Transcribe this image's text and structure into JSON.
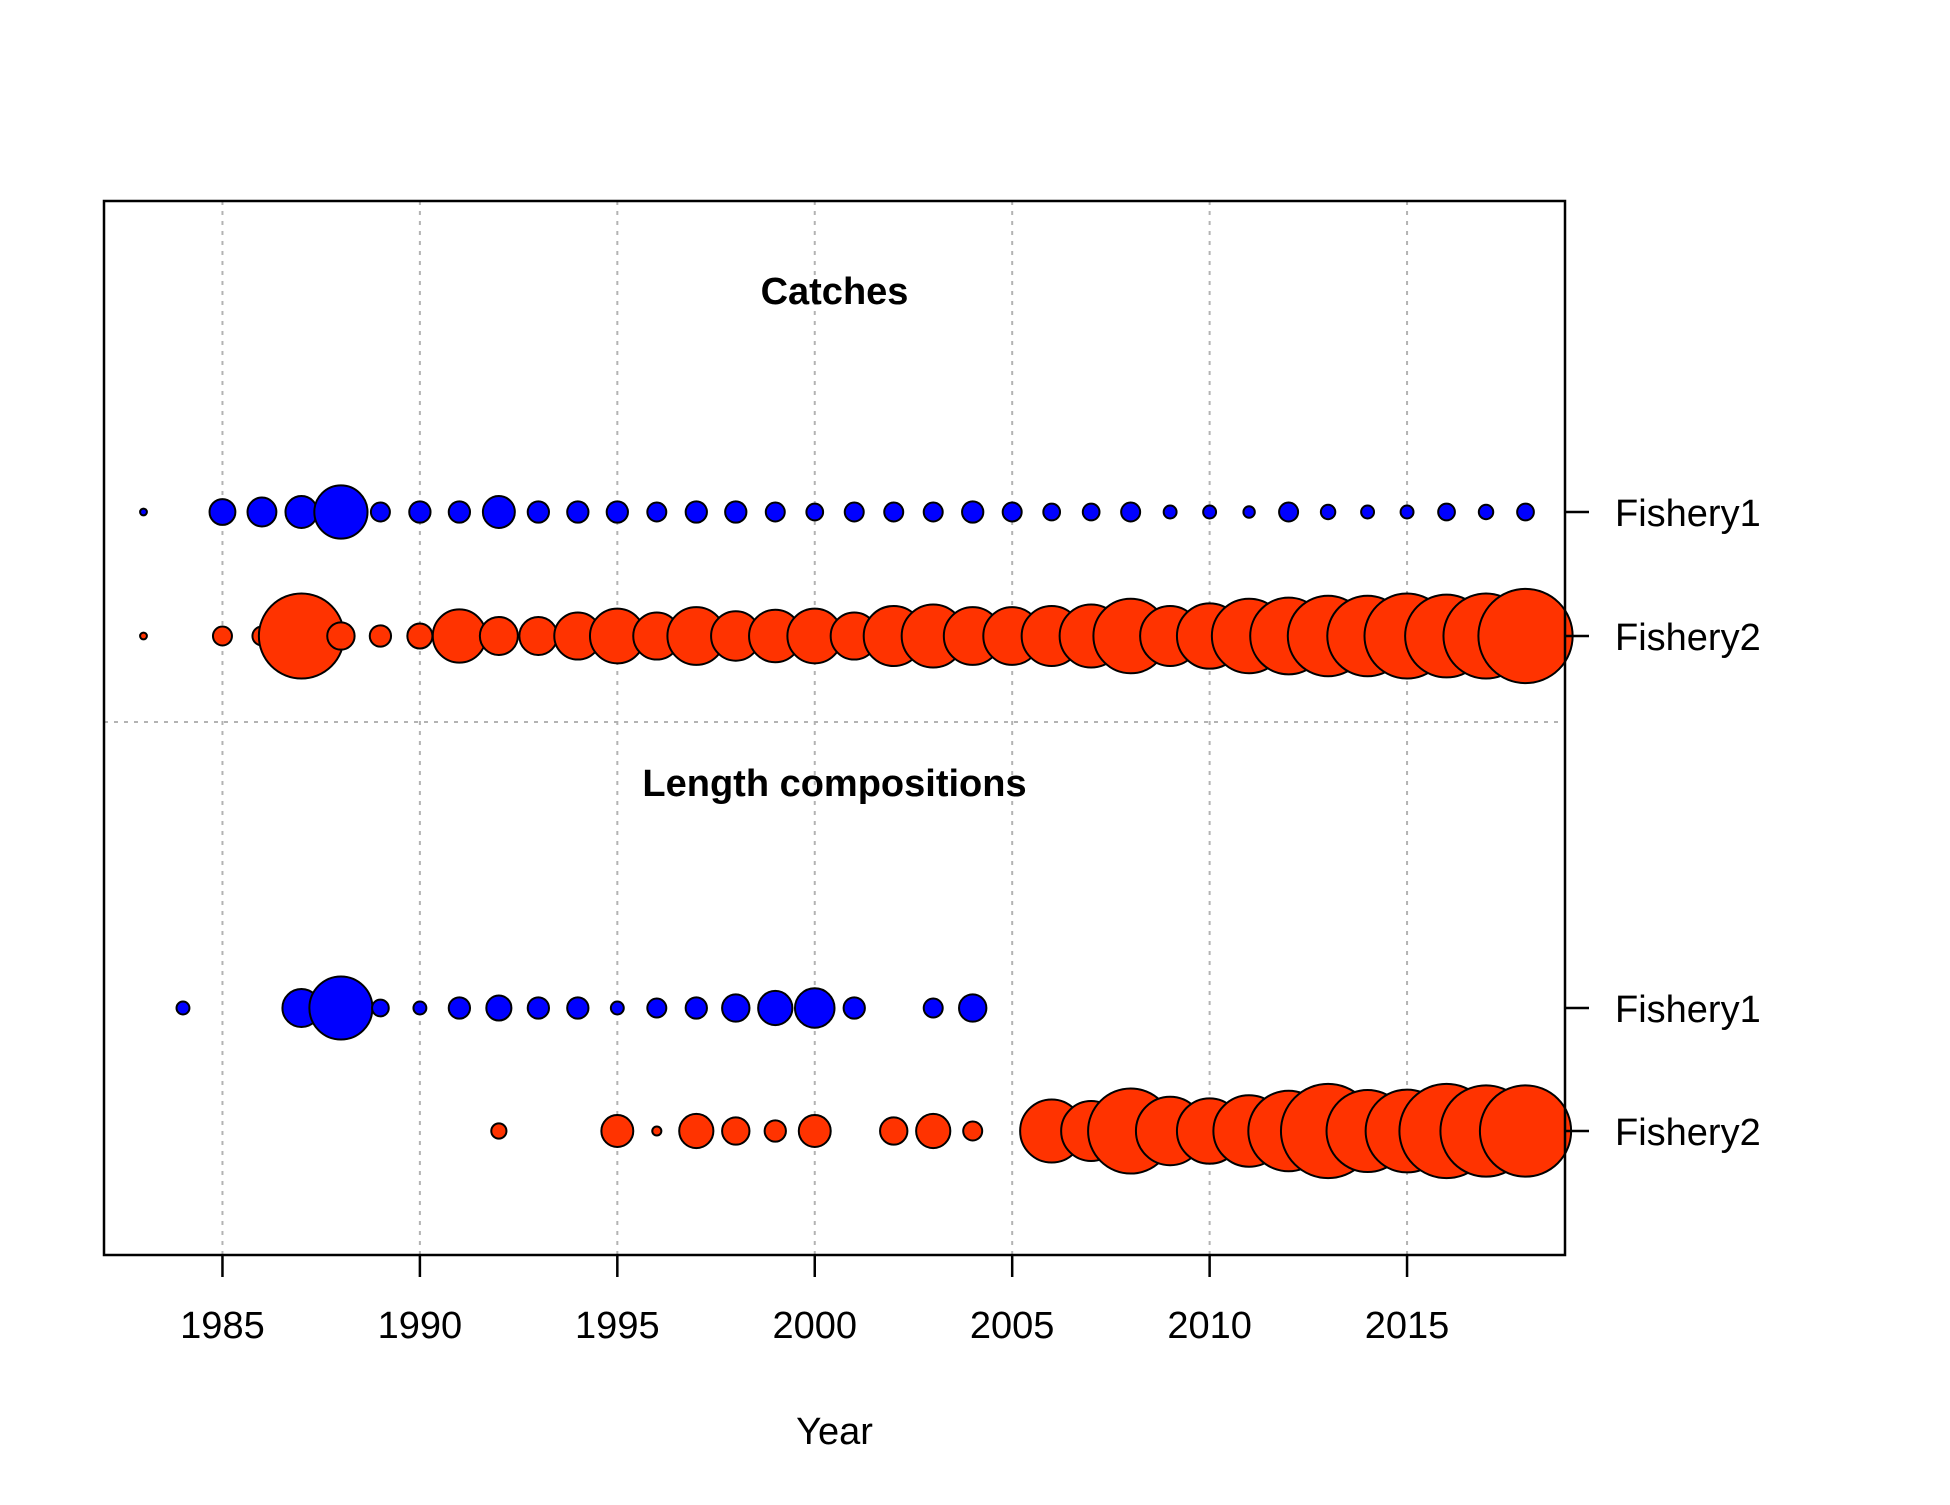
{
  "colors": {
    "fishery1": "#0000ff",
    "fishery2": "#ff3300",
    "outline": "#000000",
    "grid": "#b3b3b3"
  },
  "chart_data": {
    "type": "scatter",
    "subtype": "bubble",
    "xlabel": "Year",
    "xlim": [
      1982,
      2019
    ],
    "xticks": [
      1985,
      1990,
      1995,
      2000,
      2005,
      2010,
      2015
    ],
    "grid": true,
    "panels": [
      {
        "title": "Catches",
        "rows": [
          {
            "label": "Fishery1",
            "color": "#0000ff",
            "x": [
              1983,
              1985,
              1986,
              1987,
              1988,
              1989,
              1990,
              1991,
              1992,
              1993,
              1994,
              1995,
              1996,
              1997,
              1998,
              1999,
              2000,
              2001,
              2002,
              2003,
              2004,
              2005,
              2006,
              2007,
              2008,
              2009,
              2010,
              2011,
              2012,
              2013,
              2014,
              2015,
              2016,
              2017,
              2018
            ],
            "size": [
              0.09,
              0.34,
              0.38,
              0.42,
              0.7,
              0.25,
              0.28,
              0.28,
              0.42,
              0.28,
              0.28,
              0.28,
              0.25,
              0.28,
              0.28,
              0.25,
              0.22,
              0.25,
              0.25,
              0.25,
              0.28,
              0.25,
              0.22,
              0.22,
              0.25,
              0.17,
              0.17,
              0.15,
              0.25,
              0.19,
              0.17,
              0.17,
              0.22,
              0.19,
              0.22
            ]
          },
          {
            "label": "Fishery2",
            "color": "#ff3300",
            "x": [
              1983,
              1985,
              1986,
              1987,
              1988,
              1989,
              1990,
              1991,
              1992,
              1993,
              1994,
              1995,
              1996,
              1997,
              1998,
              1999,
              2000,
              2001,
              2002,
              2003,
              2004,
              2005,
              2006,
              2007,
              2008,
              2009,
              2010,
              2011,
              2012,
              2013,
              2014,
              2015,
              2016,
              2017,
              2018
            ],
            "size": [
              0.09,
              0.25,
              0.25,
              1.12,
              0.36,
              0.28,
              0.33,
              0.7,
              0.5,
              0.5,
              0.62,
              0.72,
              0.62,
              0.76,
              0.65,
              0.69,
              0.72,
              0.62,
              0.79,
              0.83,
              0.76,
              0.76,
              0.79,
              0.83,
              0.98,
              0.79,
              0.86,
              0.98,
              1.01,
              1.06,
              1.06,
              1.12,
              1.09,
              1.12,
              1.24
            ]
          }
        ]
      },
      {
        "title": "Length compositions",
        "rows": [
          {
            "label": "Fishery1",
            "color": "#0000ff",
            "x": [
              1984,
              1987,
              1988,
              1989,
              1990,
              1991,
              1992,
              1993,
              1994,
              1995,
              1996,
              1997,
              1998,
              1999,
              2000,
              2001,
              2003,
              2004
            ],
            "size": [
              0.17,
              0.5,
              0.83,
              0.22,
              0.17,
              0.28,
              0.33,
              0.28,
              0.28,
              0.17,
              0.25,
              0.28,
              0.36,
              0.45,
              0.52,
              0.28,
              0.25,
              0.36
            ]
          },
          {
            "label": "Fishery2",
            "color": "#ff3300",
            "x": [
              1992,
              1995,
              1996,
              1997,
              1998,
              1999,
              2000,
              2002,
              2003,
              2004,
              2006,
              2007,
              2008,
              2009,
              2010,
              2011,
              2012,
              2013,
              2014,
              2015,
              2016,
              2017,
              2018
            ],
            "size": [
              0.2,
              0.42,
              0.12,
              0.45,
              0.36,
              0.28,
              0.42,
              0.36,
              0.45,
              0.25,
              0.83,
              0.79,
              1.12,
              0.9,
              0.86,
              0.94,
              1.06,
              1.24,
              1.08,
              1.09,
              1.24,
              1.2,
              1.2
            ]
          }
        ]
      }
    ]
  }
}
